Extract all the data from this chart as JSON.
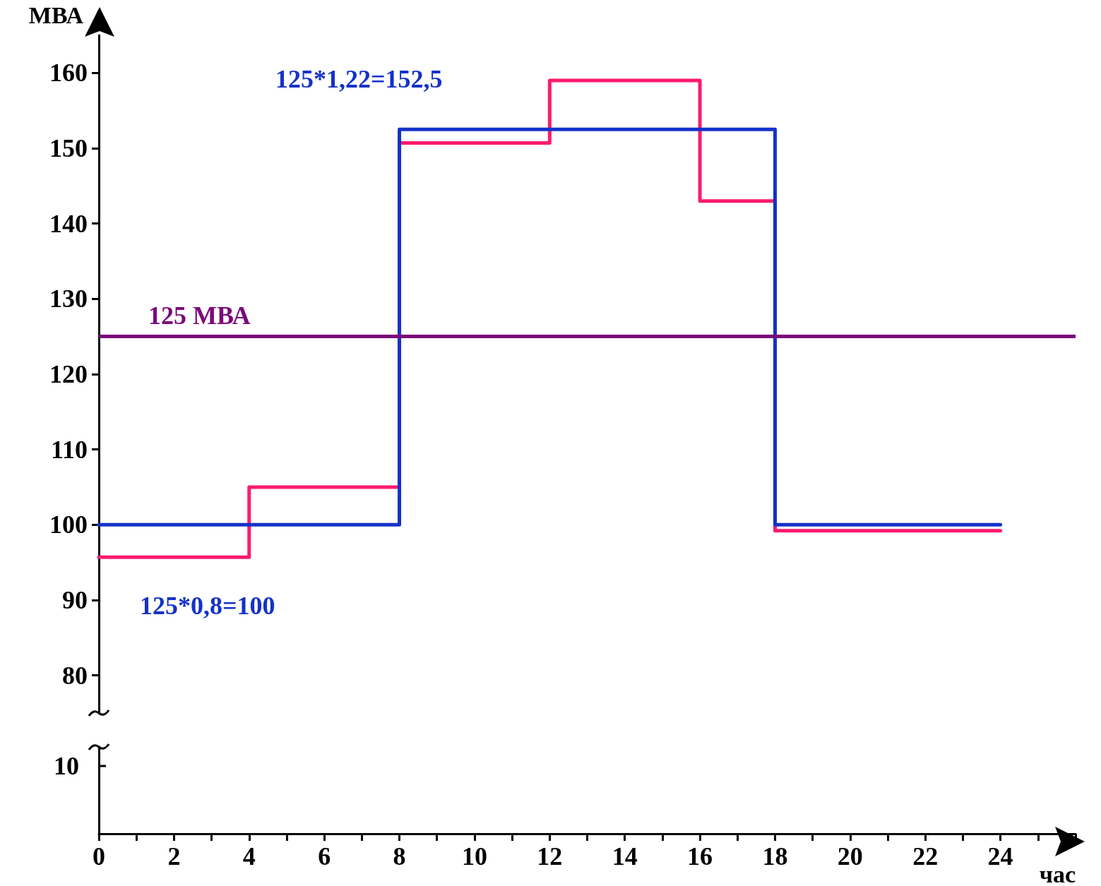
{
  "chart_data": {
    "type": "step",
    "ylabel": "МВА",
    "xlabel": "час",
    "xlim": [
      0,
      26
    ],
    "ylim": [
      75,
      165
    ],
    "yticks": [
      80,
      90,
      100,
      110,
      120,
      130,
      140,
      150,
      160
    ],
    "grid": false,
    "marker": "none",
    "xticks": [
      0,
      2,
      4,
      6,
      8,
      10,
      12,
      14,
      16,
      18,
      20,
      22,
      24
    ],
    "series": [
      {
        "color": "#ff1a6e",
        "x": [
          0,
          4,
          8,
          12,
          16,
          18,
          24
        ],
        "values": [
          95.7,
          105,
          150.7,
          159,
          143,
          99.2,
          99.2
        ]
      },
      {
        "color": "#1432c8",
        "x": [
          0,
          8,
          18,
          24
        ],
        "values": [
          100,
          152.5,
          100,
          100
        ]
      }
    ],
    "ref_lines": [
      {
        "axis": "y",
        "value": 125,
        "label": "125 МВА",
        "color": "#7b0a7b"
      }
    ],
    "annotations": [
      "125*1,22=152,5",
      "125*0,8=100",
      "10"
    ]
  }
}
